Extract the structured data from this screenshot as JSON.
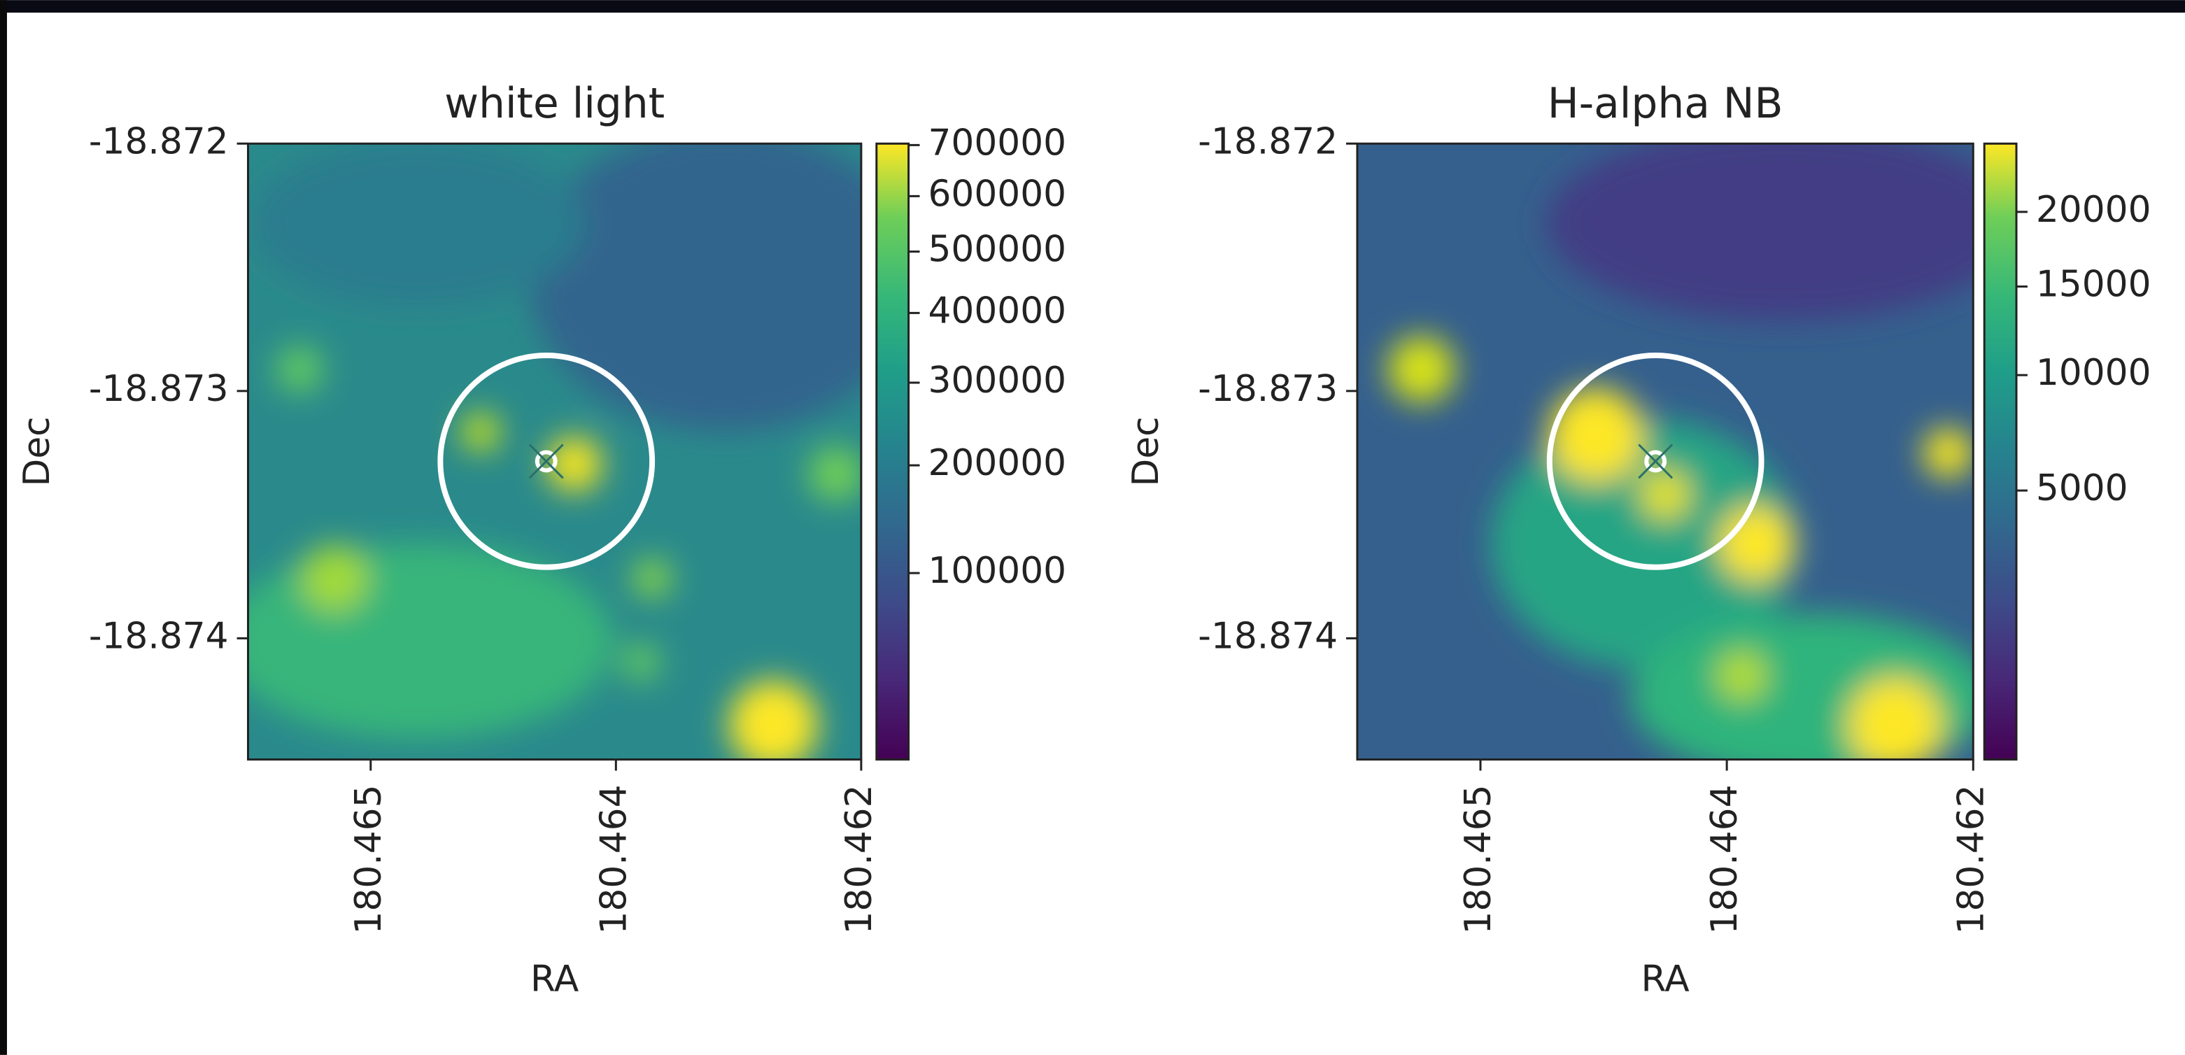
{
  "chart_data": [
    {
      "type": "image",
      "title": "white light",
      "xlabel": "RA",
      "ylabel": "Dec",
      "colormap": "viridis",
      "xlim": [
        180.46555,
        180.4623
      ],
      "ylim": [
        -18.87449,
        -18.872
      ],
      "xticks": [
        {
          "value": 180.4649,
          "label": "180.465"
        },
        {
          "value": 180.4636,
          "label": "180.464"
        },
        {
          "value": 180.4623,
          "label": "180.462"
        }
      ],
      "yticks": [
        -18.872,
        -18.873,
        -18.874
      ],
      "colorbar": {
        "scale": "sqrt",
        "clim": [
          8000,
          703000
        ],
        "ticks": [
          700000,
          600000,
          500000,
          400000,
          300000,
          200000,
          100000
        ]
      }
    },
    {
      "type": "image",
      "title": "H-alpha NB",
      "xlabel": "RA",
      "ylabel": "Dec",
      "colormap": "viridis",
      "xlim": [
        180.46555,
        180.4623
      ],
      "ylim": [
        -18.87449,
        -18.872
      ],
      "xticks": [
        {
          "value": 180.4649,
          "label": "180.465"
        },
        {
          "value": 180.4636,
          "label": "180.464"
        },
        {
          "value": 180.4623,
          "label": "180.462"
        }
      ],
      "yticks": [
        -18.872,
        -18.873,
        -18.874
      ],
      "colorbar": {
        "scale": "sqrt",
        "clim": [
          6,
          25200
        ],
        "ticks": [
          20000,
          15000,
          10000,
          5000
        ]
      }
    }
  ]
}
